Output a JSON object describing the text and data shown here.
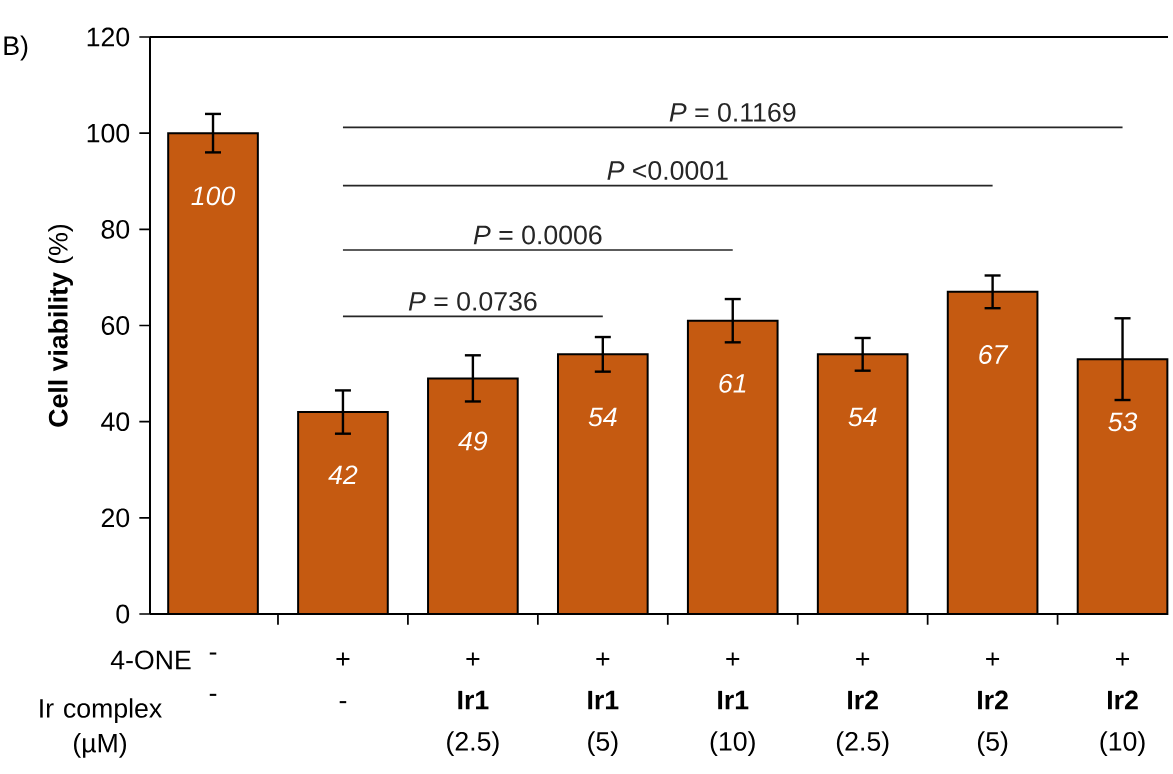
{
  "chart_data": {
    "type": "bar",
    "ylabel": "**Cell viability** (%)",
    "categories": [
      "- -",
      "+ -",
      "+ **Ir1** (2.5)",
      "+ **Ir1** (5)",
      "+ **Ir1** (10)",
      "+ **Ir2** (2.5)",
      "+ **Ir2** (5)",
      "+ **Ir2** (10)"
    ],
    "values": [
      100,
      42,
      49,
      54,
      61,
      54,
      67,
      53
    ],
    "errors": [
      4,
      4.5,
      4.8,
      3.6,
      4.5,
      3.4,
      3.4,
      8.5
    ],
    "color": "#c55a11",
    "data_labels": true,
    "ylim": [
      0,
      120
    ],
    "yticks": [
      0,
      20,
      40,
      60,
      80,
      100,
      120
    ],
    "ref_lines": [
      {
        "axis": "y",
        "value": 61.9,
        "color": "#262626"
      },
      {
        "axis": "y",
        "value": 75.7,
        "color": "#262626"
      },
      {
        "axis": "y",
        "value": 89.1,
        "color": "#262626"
      },
      {
        "axis": "y",
        "value": 101.2,
        "color": "#262626"
      }
    ],
    "annotations": [
      "B)",
      "4-ONE",
      "Ir complex (µM)",
      {
        "text": "*P* = 0.0736",
        "y": 61.9
      },
      {
        "text": "*P* = 0.0006",
        "y": 75.7
      },
      {
        "text": "*P* <0.0001",
        "y": 89.1
      },
      {
        "text": "*P* = 0.1169",
        "y": 101.2
      }
    ]
  }
}
